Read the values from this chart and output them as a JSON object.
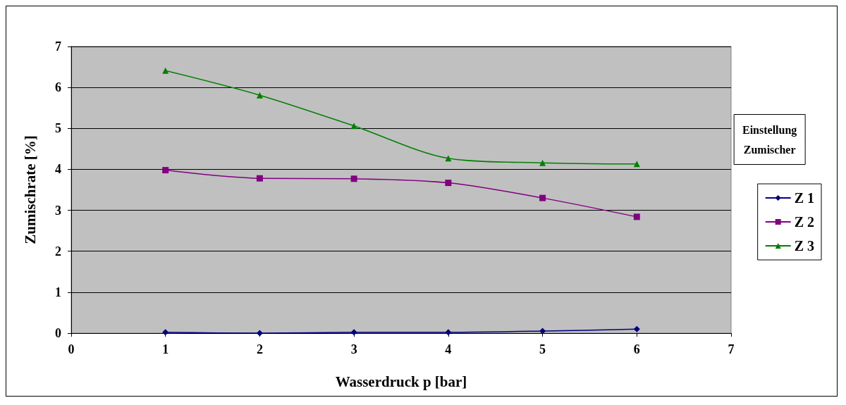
{
  "chart_data": {
    "type": "line",
    "xlabel": "Wasserdruck p [bar]",
    "ylabel": "Zumischrate [%]",
    "legend_title": "Einstellung\nZumischer",
    "x": [
      1,
      2,
      3,
      4,
      5,
      6
    ],
    "series": [
      {
        "name": "Z 1",
        "color": "#000080",
        "marker": "diamond",
        "values": [
          0.02,
          0.0,
          0.02,
          0.02,
          0.05,
          0.1
        ]
      },
      {
        "name": "Z 2",
        "color": "#800080",
        "marker": "square",
        "values": [
          3.98,
          3.78,
          3.77,
          3.67,
          3.3,
          2.84
        ]
      },
      {
        "name": "Z 3",
        "color": "#008000",
        "marker": "triangle",
        "values": [
          6.41,
          5.81,
          5.06,
          4.27,
          4.16,
          4.13
        ]
      }
    ],
    "xlim": [
      0,
      7
    ],
    "xticks": [
      0,
      1,
      2,
      3,
      4,
      5,
      6,
      7
    ],
    "ylim": [
      0,
      7
    ],
    "yticks": [
      0,
      1,
      2,
      3,
      4,
      5,
      6,
      7
    ],
    "grid": "y",
    "legend": "right",
    "line_style": "solid"
  }
}
